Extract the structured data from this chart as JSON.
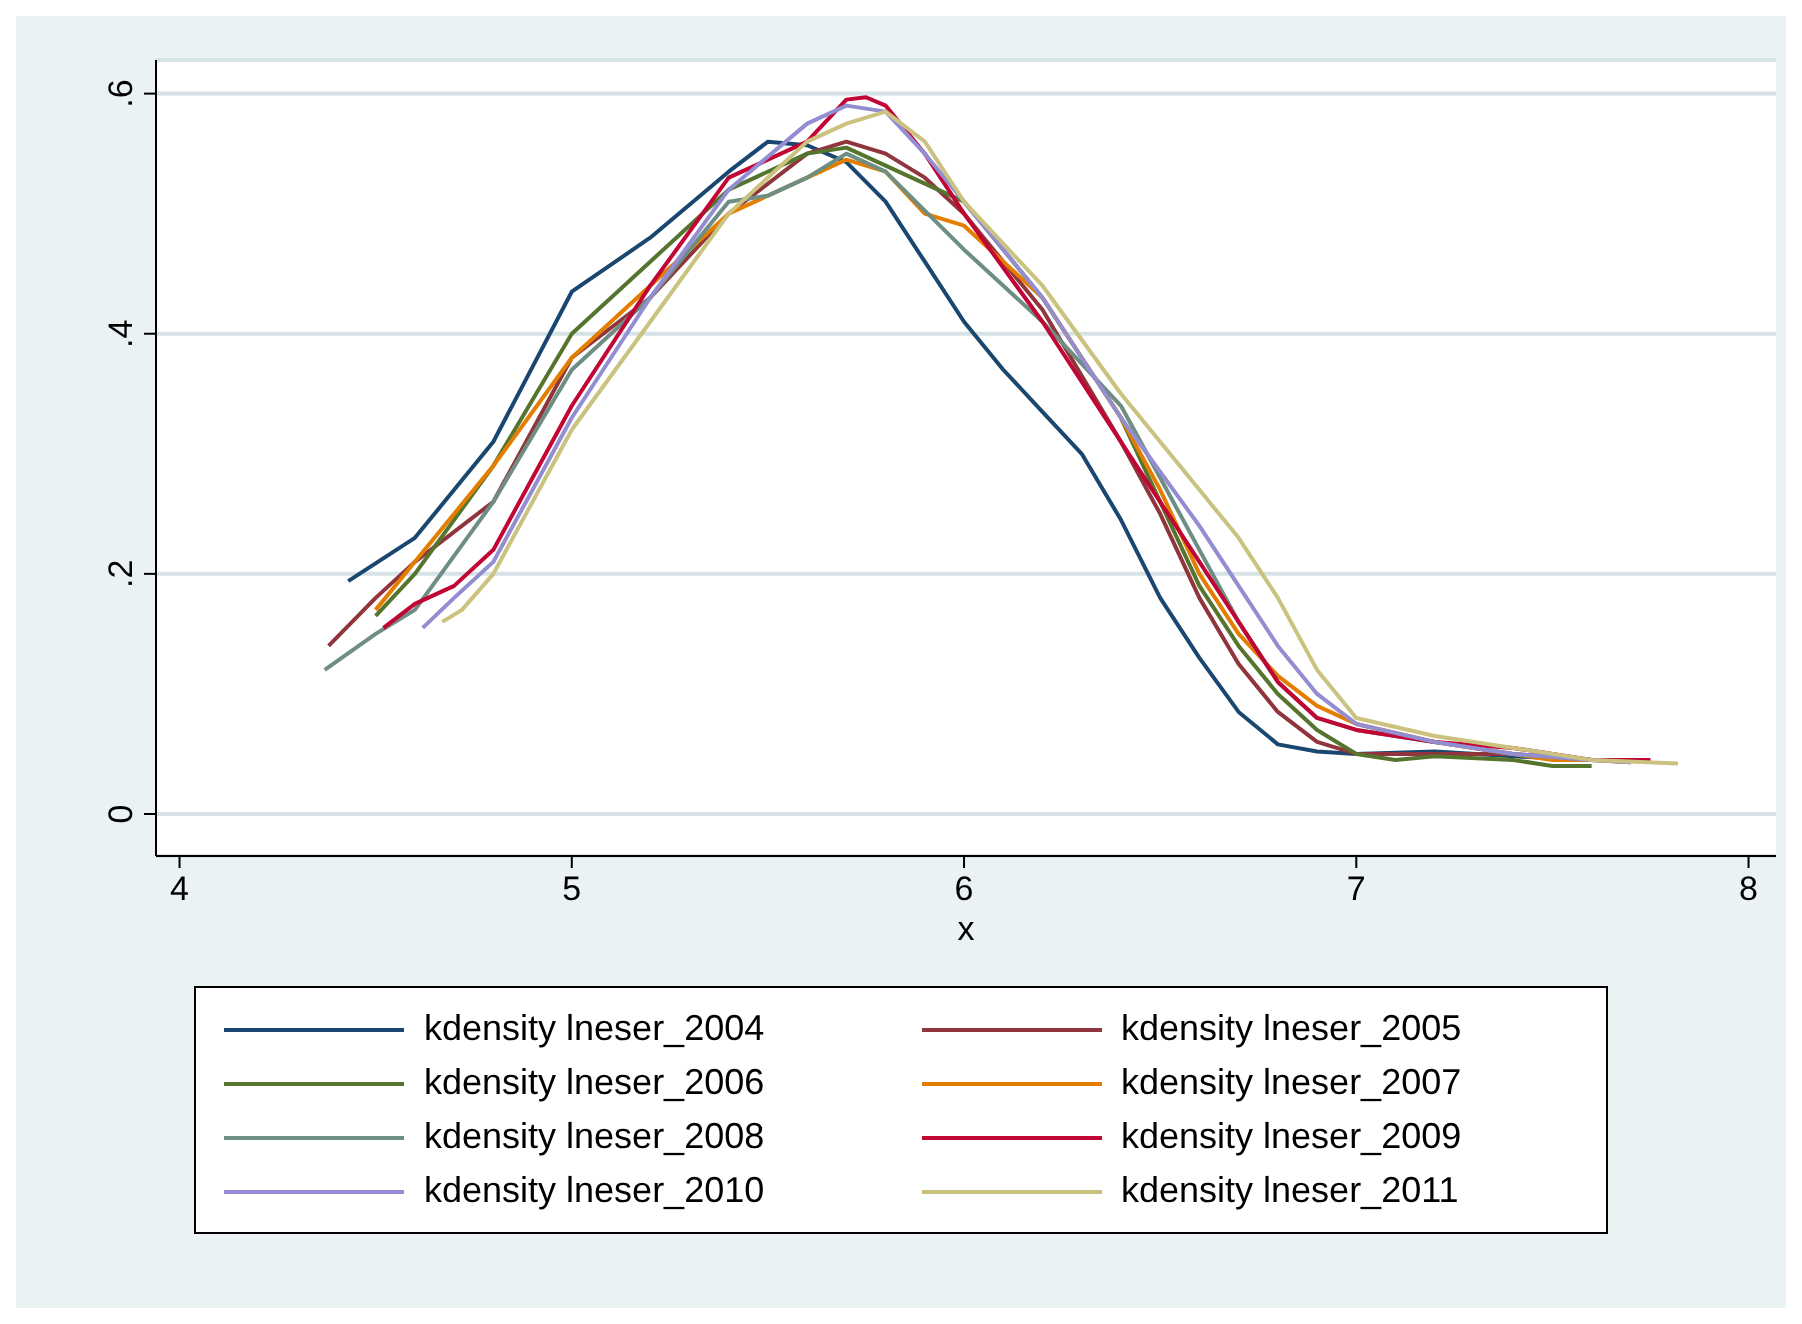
{
  "chart_data": {
    "type": "line",
    "xlabel": "x",
    "xlim": [
      3.94,
      8.07
    ],
    "xticks": [
      4,
      5,
      6,
      7,
      8
    ],
    "ylim": [
      -0.035,
      0.628
    ],
    "yticks": [
      {
        "value": 0,
        "label": "0"
      },
      {
        "value": 0.2,
        "label": ".2"
      },
      {
        "value": 0.4,
        "label": ".4"
      },
      {
        "value": 0.6,
        "label": ".6"
      }
    ],
    "grid": "y",
    "legend": "bottom",
    "marker": "none",
    "line_style": "solid",
    "series": [
      {
        "name": "kdensity lneser_2004",
        "color": "#1a476f",
        "x": [
          4.43,
          4.6,
          4.8,
          5.0,
          5.2,
          5.4,
          5.5,
          5.6,
          5.7,
          5.8,
          5.9,
          6.0,
          6.1,
          6.2,
          6.3,
          6.4,
          6.5,
          6.6,
          6.7,
          6.8,
          6.9,
          7.0,
          7.2,
          7.4,
          7.6
        ],
        "values": [
          0.194,
          0.23,
          0.31,
          0.435,
          0.48,
          0.535,
          0.56,
          0.557,
          0.543,
          0.51,
          0.46,
          0.41,
          0.37,
          0.335,
          0.3,
          0.245,
          0.18,
          0.13,
          0.085,
          0.058,
          0.052,
          0.05,
          0.052,
          0.048,
          0.045
        ]
      },
      {
        "name": "kdensity lneser_2005",
        "color": "#90353b",
        "x": [
          4.38,
          4.5,
          4.6,
          4.8,
          5.0,
          5.2,
          5.4,
          5.6,
          5.7,
          5.8,
          5.9,
          6.0,
          6.2,
          6.4,
          6.5,
          6.6,
          6.7,
          6.8,
          6.9,
          7.0,
          7.2,
          7.4,
          7.6,
          7.7
        ],
        "values": [
          0.14,
          0.18,
          0.21,
          0.26,
          0.38,
          0.43,
          0.5,
          0.55,
          0.56,
          0.55,
          0.53,
          0.5,
          0.42,
          0.31,
          0.25,
          0.18,
          0.125,
          0.085,
          0.06,
          0.05,
          0.05,
          0.05,
          0.045,
          0.043
        ]
      },
      {
        "name": "kdensity lneser_2006",
        "color": "#55752f",
        "x": [
          4.5,
          4.6,
          4.8,
          5.0,
          5.2,
          5.4,
          5.6,
          5.7,
          5.8,
          6.0,
          6.2,
          6.4,
          6.5,
          6.6,
          6.7,
          6.8,
          6.9,
          7.0,
          7.1,
          7.2,
          7.4,
          7.5,
          7.6
        ],
        "values": [
          0.165,
          0.2,
          0.29,
          0.4,
          0.46,
          0.52,
          0.55,
          0.555,
          0.54,
          0.51,
          0.43,
          0.33,
          0.26,
          0.19,
          0.14,
          0.1,
          0.07,
          0.05,
          0.045,
          0.048,
          0.045,
          0.04,
          0.04
        ]
      },
      {
        "name": "kdensity lneser_2007",
        "color": "#e37e00",
        "x": [
          4.5,
          4.6,
          4.8,
          5.0,
          5.2,
          5.4,
          5.6,
          5.7,
          5.8,
          5.9,
          6.0,
          6.2,
          6.4,
          6.5,
          6.6,
          6.7,
          6.8,
          6.9,
          7.0,
          7.2,
          7.4,
          7.5,
          7.6
        ],
        "values": [
          0.17,
          0.21,
          0.29,
          0.38,
          0.44,
          0.5,
          0.53,
          0.545,
          0.535,
          0.5,
          0.49,
          0.43,
          0.33,
          0.27,
          0.2,
          0.15,
          0.115,
          0.09,
          0.075,
          0.06,
          0.05,
          0.045,
          0.045
        ]
      },
      {
        "name": "kdensity lneser_2008",
        "color": "#6e8e84",
        "x": [
          4.37,
          4.5,
          4.6,
          4.8,
          5.0,
          5.2,
          5.4,
          5.5,
          5.6,
          5.7,
          5.8,
          6.0,
          6.2,
          6.4,
          6.5,
          6.6,
          6.7,
          6.8,
          6.9,
          7.0,
          7.2,
          7.4,
          7.6
        ],
        "values": [
          0.12,
          0.15,
          0.17,
          0.26,
          0.37,
          0.43,
          0.51,
          0.515,
          0.53,
          0.55,
          0.535,
          0.47,
          0.41,
          0.34,
          0.28,
          0.22,
          0.16,
          0.11,
          0.08,
          0.07,
          0.06,
          0.05,
          0.045
        ]
      },
      {
        "name": "kdensity lneser_2009",
        "color": "#c10534",
        "x": [
          4.52,
          4.6,
          4.7,
          4.8,
          5.0,
          5.2,
          5.4,
          5.5,
          5.6,
          5.7,
          5.75,
          5.8,
          5.9,
          6.0,
          6.2,
          6.4,
          6.5,
          6.6,
          6.7,
          6.8,
          6.9,
          7.0,
          7.2,
          7.4,
          7.6,
          7.75
        ],
        "values": [
          0.155,
          0.175,
          0.19,
          0.22,
          0.34,
          0.44,
          0.53,
          0.545,
          0.56,
          0.595,
          0.597,
          0.59,
          0.55,
          0.5,
          0.41,
          0.31,
          0.26,
          0.21,
          0.16,
          0.11,
          0.08,
          0.07,
          0.06,
          0.055,
          0.045,
          0.045
        ]
      },
      {
        "name": "kdensity lneser_2010",
        "color": "#938dd2",
        "x": [
          4.62,
          4.7,
          4.8,
          5.0,
          5.2,
          5.4,
          5.6,
          5.7,
          5.8,
          5.9,
          6.0,
          6.2,
          6.4,
          6.6,
          6.7,
          6.8,
          6.9,
          7.0,
          7.2,
          7.4,
          7.6,
          7.7
        ],
        "values": [
          0.155,
          0.18,
          0.21,
          0.33,
          0.43,
          0.52,
          0.575,
          0.59,
          0.585,
          0.55,
          0.51,
          0.43,
          0.33,
          0.24,
          0.19,
          0.14,
          0.1,
          0.075,
          0.06,
          0.05,
          0.045,
          0.043
        ]
      },
      {
        "name": "kdensity lneser_2011",
        "color": "#cac27e",
        "x": [
          4.67,
          4.72,
          4.8,
          4.9,
          5.0,
          5.2,
          5.4,
          5.6,
          5.7,
          5.8,
          5.9,
          6.0,
          6.2,
          6.4,
          6.6,
          6.7,
          6.8,
          6.9,
          7.0,
          7.2,
          7.4,
          7.6,
          7.82
        ],
        "values": [
          0.16,
          0.17,
          0.2,
          0.26,
          0.32,
          0.41,
          0.5,
          0.56,
          0.575,
          0.585,
          0.56,
          0.51,
          0.44,
          0.35,
          0.27,
          0.23,
          0.18,
          0.12,
          0.08,
          0.065,
          0.055,
          0.045,
          0.042
        ]
      }
    ]
  }
}
